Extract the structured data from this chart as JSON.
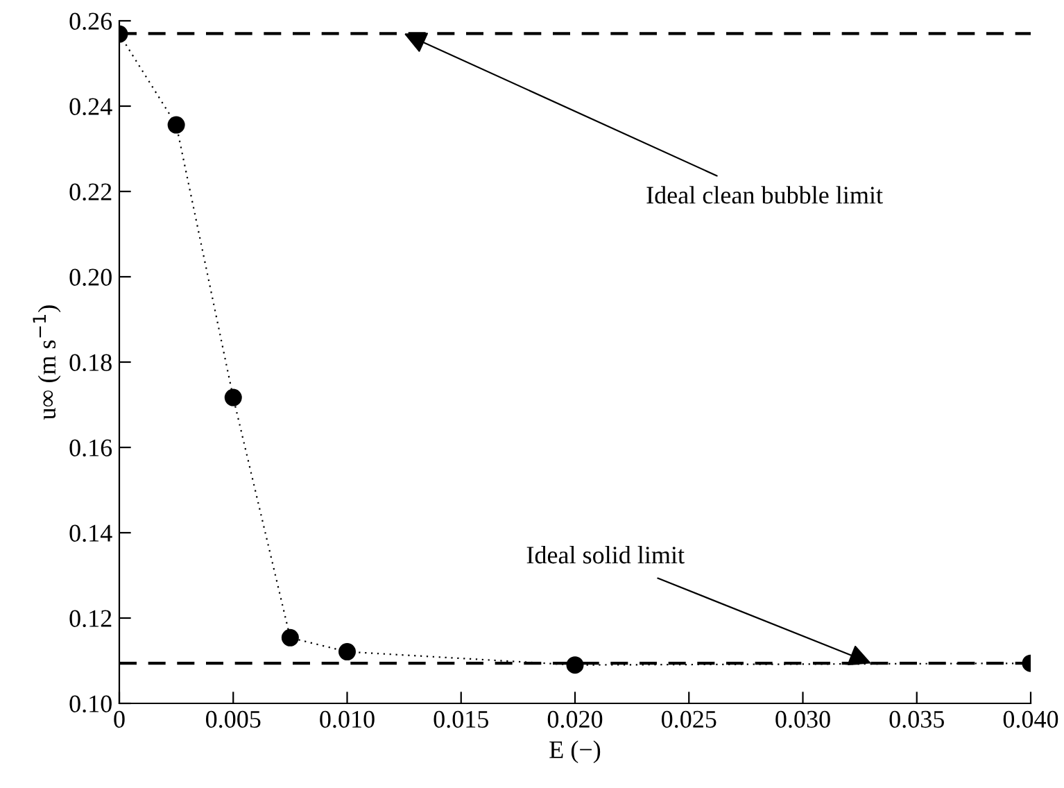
{
  "chart_data": {
    "type": "line",
    "xlabel": "E (−)",
    "ylabel": "u∞ (m s$^{−1}$)",
    "x": [
      0,
      0.0025,
      0.005,
      0.0075,
      0.01,
      0.02,
      0.04
    ],
    "series": [
      {
        "color": "#000000",
        "values": [
          0.2569,
          0.2356,
          0.1717,
          0.1154,
          0.1121,
          0.109,
          0.1094
        ]
      }
    ],
    "marker": "circle",
    "line_style": "dotted",
    "xlim": [
      0,
      0.04
    ],
    "ylim": [
      0.1,
      0.26
    ],
    "xticks": [
      0,
      {
        "value": 0.005,
        "label": "0.005"
      },
      {
        "value": 0.01,
        "label": "0.010"
      },
      {
        "value": 0.015,
        "label": "0.015"
      },
      {
        "value": 0.02,
        "label": "0.020"
      },
      {
        "value": 0.025,
        "label": "0.025"
      },
      {
        "value": 0.03,
        "label": "0.030"
      },
      {
        "value": 0.035,
        "label": "0.035"
      },
      {
        "value": 0.04,
        "label": "0.040"
      }
    ],
    "yticks": [
      {
        "value": 0.1,
        "label": "0.10"
      },
      {
        "value": 0.12,
        "label": "0.12"
      },
      {
        "value": 0.14,
        "label": "0.14"
      },
      {
        "value": 0.16,
        "label": "0.16"
      },
      {
        "value": 0.18,
        "label": "0.18"
      },
      {
        "value": 0.2,
        "label": "0.20"
      },
      {
        "value": 0.22,
        "label": "0.22"
      },
      {
        "value": 0.24,
        "label": "0.24"
      },
      {
        "value": 0.26,
        "label": "0.26"
      }
    ],
    "ref_lines": [
      {
        "axis": "y",
        "value": 0.257,
        "color": "#000000",
        "line_style": "dashed"
      },
      {
        "axis": "y",
        "value": 0.1094,
        "color": "#000000",
        "line_style": "dashed"
      }
    ],
    "annotations": [
      {
        "text": "Ideal clean bubble limit",
        "x": 0.0125,
        "y": 0.257
      },
      {
        "text": "Ideal solid limit",
        "x": 0.033,
        "y": 0.1094
      }
    ],
    "grid": false,
    "legend": false
  }
}
